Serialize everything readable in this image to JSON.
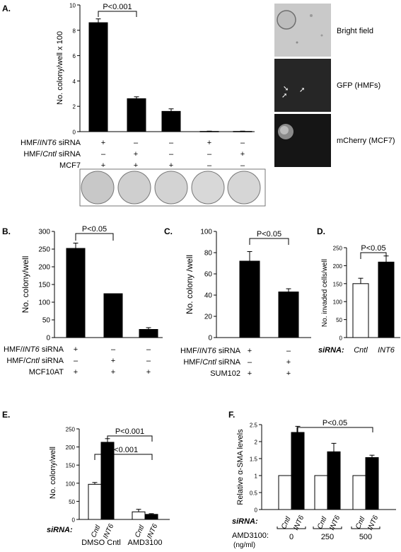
{
  "panels": {
    "A": {
      "label": "A.",
      "ylabel": "No. colony/well x 100",
      "pvalue": "P<0.001",
      "rows": [
        {
          "label": "HMF/INT6 siRNA",
          "marks": [
            "+",
            "–",
            "–",
            "+",
            "–"
          ]
        },
        {
          "label": "HMF/Cntl siRNA",
          "marks": [
            "–",
            "+",
            "–",
            "–",
            "+"
          ]
        },
        {
          "label": "MCF7",
          "marks": [
            "+",
            "+",
            "+",
            "–",
            "–"
          ]
        }
      ],
      "image_labels": [
        "Bright field",
        "GFP (HMFs)",
        "mCherry (MCF7)"
      ]
    },
    "B": {
      "label": "B.",
      "ylabel": "No. colony/well",
      "pvalue": "P<0.05",
      "rows": [
        {
          "label": "HMF/INT6 siRNA",
          "marks": [
            "+",
            "–",
            "–"
          ]
        },
        {
          "label": "HMF/Cntl siRNA",
          "marks": [
            "–",
            "+",
            "–"
          ]
        },
        {
          "label": "MCF10AT",
          "marks": [
            "+",
            "+",
            "+"
          ]
        }
      ]
    },
    "C": {
      "label": "C.",
      "ylabel": "No. colony /well",
      "pvalue": "P<0.05",
      "rows": [
        {
          "label": "HMF/INT6 siRNA",
          "marks": [
            "+",
            "–"
          ]
        },
        {
          "label": "HMF/Cntl siRNA",
          "marks": [
            "–",
            "+"
          ]
        },
        {
          "label": "SUM102",
          "marks": [
            "+",
            "+"
          ]
        }
      ]
    },
    "D": {
      "label": "D.",
      "ylabel": "No. invaded cells/well",
      "pvalue": "P<0.05",
      "sirna_label": "siRNA:",
      "categories": [
        "Cntl",
        "INT6"
      ]
    },
    "E": {
      "label": "E.",
      "ylabel": "No. colony/well",
      "pvalues": [
        "P<0.001",
        "P<0.001"
      ],
      "sirna_label": "siRNA:",
      "groups": [
        "DMSO Cntl",
        "AMD3100"
      ]
    },
    "F": {
      "label": "F.",
      "ylabel": "Relative α-SMA levels",
      "pvalue": "P<0.05",
      "sirna_label": "siRNA:",
      "dose_label": "AMD3100:",
      "dose_unit": "(ng/ml)",
      "doses": [
        "0",
        "250",
        "500"
      ]
    }
  },
  "chart_data": [
    {
      "type": "bar",
      "panel": "A",
      "categories": [
        "1",
        "2",
        "3",
        "4",
        "5"
      ],
      "values": [
        8.6,
        2.6,
        1.6,
        0.02,
        0.02
      ],
      "errors": [
        0.3,
        0.15,
        0.2,
        0.02,
        0.02
      ],
      "ylim": [
        0,
        10
      ],
      "yticks": [
        0,
        2,
        4,
        6,
        8,
        10
      ]
    },
    {
      "type": "bar",
      "panel": "B",
      "categories": [
        "1",
        "2",
        "3"
      ],
      "values": [
        252,
        124,
        23
      ],
      "errors": [
        15,
        0,
        5
      ],
      "ylim": [
        0,
        300
      ],
      "yticks": [
        0,
        50,
        100,
        150,
        200,
        250,
        300
      ]
    },
    {
      "type": "bar",
      "panel": "C",
      "categories": [
        "1",
        "2"
      ],
      "values": [
        72,
        43
      ],
      "errors": [
        9,
        3
      ],
      "ylim": [
        0,
        100
      ],
      "yticks": [
        0,
        20,
        40,
        60,
        80,
        100
      ]
    },
    {
      "type": "bar",
      "panel": "D",
      "categories": [
        "Cntl",
        "INT6"
      ],
      "values": [
        150,
        210
      ],
      "errors": [
        15,
        17
      ],
      "ylim": [
        0,
        250
      ],
      "yticks": [
        0,
        50,
        100,
        150,
        200,
        250
      ],
      "colors": [
        "#ffffff",
        "#000000"
      ]
    },
    {
      "type": "bar",
      "panel": "E",
      "categories": [
        "DMSO Cntl",
        "AMD3100"
      ],
      "series": [
        {
          "name": "Cntl",
          "values": [
            97,
            21
          ],
          "errors": [
            5,
            7
          ]
        },
        {
          "name": "INT6",
          "values": [
            213,
            14
          ],
          "errors": [
            10,
            2
          ]
        }
      ],
      "ylim": [
        0,
        250
      ],
      "yticks": [
        0,
        50,
        100,
        150,
        200,
        250
      ]
    },
    {
      "type": "bar",
      "panel": "F",
      "categories": [
        "0",
        "250",
        "500"
      ],
      "series": [
        {
          "name": "Cntl",
          "values": [
            1,
            1,
            1
          ],
          "errors": [
            0,
            0,
            0
          ]
        },
        {
          "name": "INT6",
          "values": [
            2.27,
            1.7,
            1.53
          ],
          "errors": [
            0.18,
            0.25,
            0.07
          ]
        }
      ],
      "ylim": [
        0,
        2.5
      ],
      "yticks": [
        0,
        0.5,
        1,
        1.5,
        2,
        2.5
      ]
    }
  ]
}
